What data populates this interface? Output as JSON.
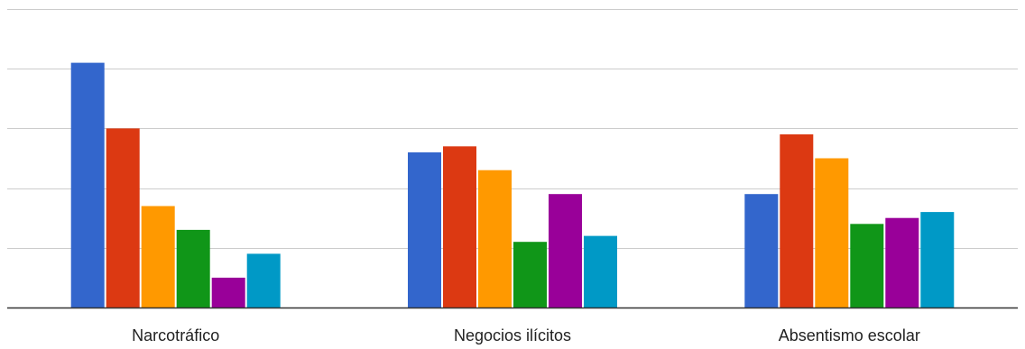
{
  "chart_data": {
    "type": "bar",
    "categories": [
      "Narcotráfico",
      "Negocios ilícitos",
      "Absentismo escolar"
    ],
    "series": [
      {
        "color": "#3366cc",
        "values": [
          41,
          26,
          19
        ]
      },
      {
        "color": "#dc3912",
        "values": [
          30,
          27,
          29
        ]
      },
      {
        "color": "#ff9900",
        "values": [
          17,
          23,
          25
        ]
      },
      {
        "color": "#109618",
        "values": [
          13,
          11,
          14
        ]
      },
      {
        "color": "#990099",
        "values": [
          5,
          19,
          15
        ]
      },
      {
        "color": "#0099c6",
        "values": [
          9,
          12,
          16
        ]
      }
    ],
    "ylim": [
      0,
      50
    ],
    "gridlines": [
      0,
      10,
      20,
      30,
      40,
      50
    ],
    "grid": true,
    "legend": "none",
    "title": "",
    "xlabel": "",
    "ylabel": ""
  }
}
